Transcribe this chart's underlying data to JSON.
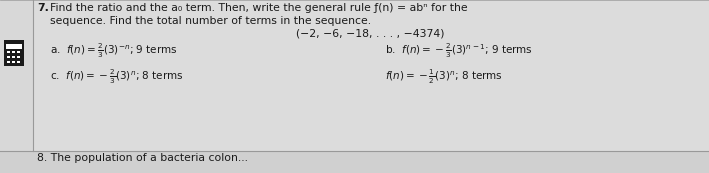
{
  "bg_color": "#c8c8c8",
  "inner_bg": "#e0e0e0",
  "text_color": "#1a1a1a",
  "line_color": "#999999",
  "q7_num": "7.",
  "title_line1": "Find the ratio and the a₀ term. Then, write the general rule ƒ(n) = abⁿ for the",
  "title_line2": "sequence. Find the total number of terms in the sequence.",
  "sequence": "(−2, −6, −18, . . . , −4374)",
  "opt_a_label": "a.",
  "opt_b_label": "b.",
  "opt_c_label": "c.",
  "q8_text": "8. The population of a bacteria colon..."
}
